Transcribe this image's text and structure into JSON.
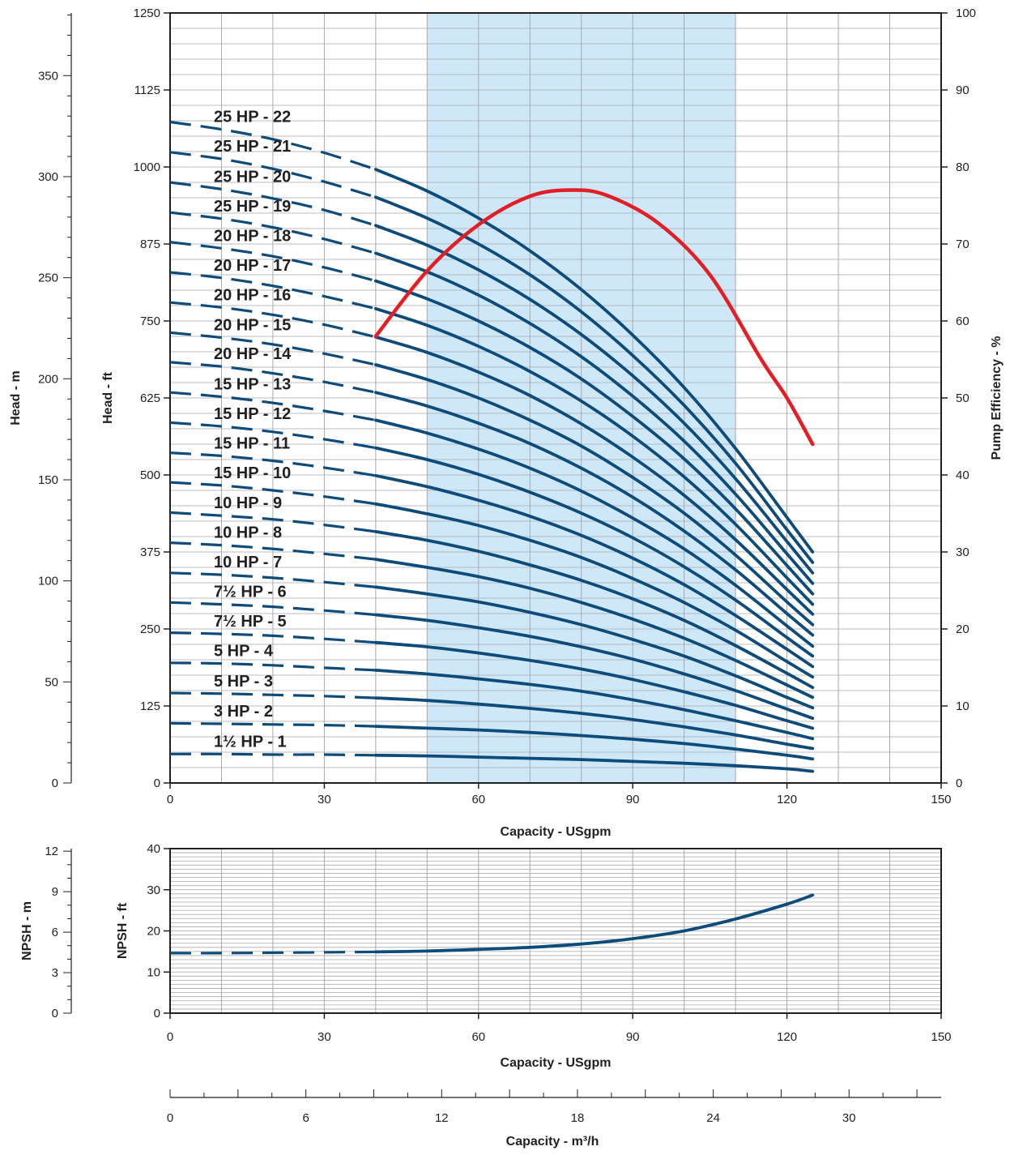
{
  "colors": {
    "head_curves": "#0d4c7a",
    "efficiency_curve": "#e31e24",
    "operating_range_fill": "#cfe8f8",
    "grid": "#a7a9ac",
    "axis": "#231f20"
  },
  "chart_data": [
    {
      "type": "line",
      "title": "",
      "xlabel": "Capacity - USgpm",
      "ylabel": "Head - ft",
      "y2label": "Pump Efficiency - %",
      "y3label": "Head - m",
      "xlim": [
        0,
        150
      ],
      "ylim": [
        0,
        1250
      ],
      "y2lim": [
        0,
        100
      ],
      "y3lim": [
        0,
        381
      ],
      "x_ticks": [
        "0",
        "30",
        "60",
        "90",
        "120",
        "150"
      ],
      "y_ticks": [
        "0",
        "125",
        "250",
        "375",
        "500",
        "625",
        "750",
        "875",
        "1000",
        "1125",
        "1250"
      ],
      "y2_ticks": [
        "0",
        "10",
        "20",
        "30",
        "40",
        "50",
        "60",
        "70",
        "80",
        "90",
        "100"
      ],
      "y3_ticks": [
        "0",
        "50",
        "100",
        "150",
        "200",
        "250",
        "300",
        "350"
      ],
      "grid": true,
      "operating_range_x": [
        50,
        110
      ],
      "dashed_below_x": 40,
      "x": [
        0,
        10,
        20,
        30,
        40,
        50,
        60,
        70,
        80,
        90,
        100,
        110,
        120,
        125
      ],
      "series": [
        {
          "name": "1½ HP - 1",
          "values": [
            47,
            47,
            46,
            46,
            45,
            44,
            42,
            40,
            38,
            35,
            32,
            28,
            23,
            19
          ]
        },
        {
          "name": "3 HP - 2",
          "values": [
            97,
            96,
            95,
            94,
            92,
            89,
            86,
            82,
            77,
            71,
            64,
            55,
            45,
            39
          ]
        },
        {
          "name": "5 HP - 3",
          "values": [
            146,
            145,
            143,
            141,
            138,
            134,
            128,
            121,
            113,
            103,
            91,
            78,
            63,
            56
          ]
        },
        {
          "name": "5 HP - 4",
          "values": [
            195,
            194,
            191,
            187,
            183,
            177,
            169,
            160,
            149,
            135,
            119,
            101,
            82,
            72
          ]
        },
        {
          "name": "7½ HP - 5",
          "values": [
            244,
            242,
            239,
            234,
            228,
            221,
            211,
            199,
            185,
            168,
            148,
            126,
            101,
            89
          ]
        },
        {
          "name": "7½ HP - 6",
          "values": [
            293,
            290,
            286,
            280,
            273,
            264,
            252,
            238,
            221,
            201,
            177,
            150,
            120,
            105
          ]
        },
        {
          "name": "10 HP - 7",
          "values": [
            341,
            338,
            333,
            326,
            318,
            307,
            294,
            277,
            257,
            233,
            206,
            174,
            139,
            122
          ]
        },
        {
          "name": "10 HP - 8",
          "values": [
            390,
            386,
            380,
            372,
            363,
            350,
            335,
            316,
            293,
            266,
            235,
            199,
            159,
            139
          ]
        },
        {
          "name": "10 HP - 9",
          "values": [
            439,
            434,
            428,
            419,
            408,
            394,
            376,
            354,
            329,
            299,
            264,
            223,
            178,
            155
          ]
        },
        {
          "name": "15 HP - 10",
          "values": [
            488,
            483,
            475,
            465,
            453,
            437,
            418,
            394,
            366,
            332,
            293,
            248,
            197,
            172
          ]
        },
        {
          "name": "15 HP - 11",
          "values": [
            536,
            531,
            523,
            512,
            499,
            481,
            459,
            433,
            402,
            365,
            322,
            272,
            217,
            189
          ]
        },
        {
          "name": "15 HP - 12",
          "values": [
            585,
            579,
            570,
            558,
            544,
            525,
            501,
            472,
            438,
            398,
            351,
            297,
            236,
            206
          ]
        },
        {
          "name": "15 HP - 13",
          "values": [
            634,
            627,
            617,
            604,
            589,
            568,
            542,
            511,
            474,
            430,
            380,
            321,
            255,
            222
          ]
        },
        {
          "name": "20 HP - 14",
          "values": [
            683,
            676,
            665,
            651,
            634,
            612,
            584,
            551,
            511,
            464,
            409,
            346,
            275,
            240
          ]
        },
        {
          "name": "20 HP - 15",
          "values": [
            731,
            723,
            712,
            697,
            679,
            655,
            625,
            589,
            547,
            496,
            438,
            370,
            294,
            257
          ]
        },
        {
          "name": "20 HP - 16",
          "values": [
            780,
            772,
            760,
            744,
            724,
            699,
            667,
            629,
            583,
            529,
            467,
            395,
            314,
            274
          ]
        },
        {
          "name": "20 HP - 17",
          "values": [
            829,
            820,
            807,
            790,
            770,
            743,
            709,
            668,
            620,
            563,
            497,
            420,
            333,
            290
          ]
        },
        {
          "name": "20 HP - 18",
          "values": [
            878,
            868,
            855,
            837,
            815,
            786,
            750,
            707,
            656,
            595,
            526,
            445,
            353,
            307
          ]
        },
        {
          "name": "25 HP - 19",
          "values": [
            926,
            916,
            902,
            883,
            860,
            830,
            792,
            746,
            692,
            628,
            555,
            469,
            372,
            324
          ]
        },
        {
          "name": "25 HP - 20",
          "values": [
            975,
            964,
            949,
            930,
            905,
            873,
            833,
            785,
            728,
            661,
            584,
            494,
            392,
            341
          ]
        },
        {
          "name": "25 HP - 21",
          "values": [
            1024,
            1013,
            997,
            976,
            951,
            917,
            875,
            825,
            765,
            694,
            613,
            519,
            411,
            358
          ]
        },
        {
          "name": "25 HP - 22",
          "values": [
            1073,
            1061,
            1045,
            1023,
            996,
            961,
            917,
            864,
            801,
            727,
            642,
            543,
            431,
            375
          ]
        }
      ],
      "efficiency": {
        "x": [
          40,
          50,
          60,
          70,
          78,
          85,
          95,
          105,
          115,
          120,
          125
        ],
        "values": [
          58,
          66.5,
          72.5,
          76.2,
          77,
          76.3,
          72.7,
          66,
          55,
          50,
          44
        ]
      }
    },
    {
      "type": "line",
      "title": "",
      "xlabel": "Capacity - USgpm",
      "ylabel": "NPSH - ft",
      "y3label": "NPSH - m",
      "xlim": [
        0,
        150
      ],
      "ylim": [
        0,
        40
      ],
      "y3lim": [
        0,
        12.19
      ],
      "x_ticks": [
        "0",
        "30",
        "60",
        "90",
        "120",
        "150"
      ],
      "y_ticks": [
        "0",
        "10",
        "20",
        "30",
        "40"
      ],
      "y3_ticks": [
        "0",
        "3",
        "6",
        "9",
        "12"
      ],
      "grid": true,
      "dashed_below_x": 40,
      "series": [
        {
          "x": [
            0,
            10,
            20,
            30,
            40,
            50,
            60,
            70,
            80,
            90,
            100,
            110,
            120,
            125
          ],
          "values": [
            14.6,
            14.6,
            14.7,
            14.8,
            14.9,
            15.1,
            15.5,
            16,
            16.8,
            18.1,
            20,
            22.9,
            26.5,
            28.7
          ]
        }
      ]
    },
    {
      "type": "axis",
      "xlabel": "Capacity - m³/h",
      "xlim": [
        0,
        34.07
      ],
      "x_ticks": [
        "0",
        "6",
        "12",
        "18",
        "24",
        "30"
      ]
    }
  ]
}
